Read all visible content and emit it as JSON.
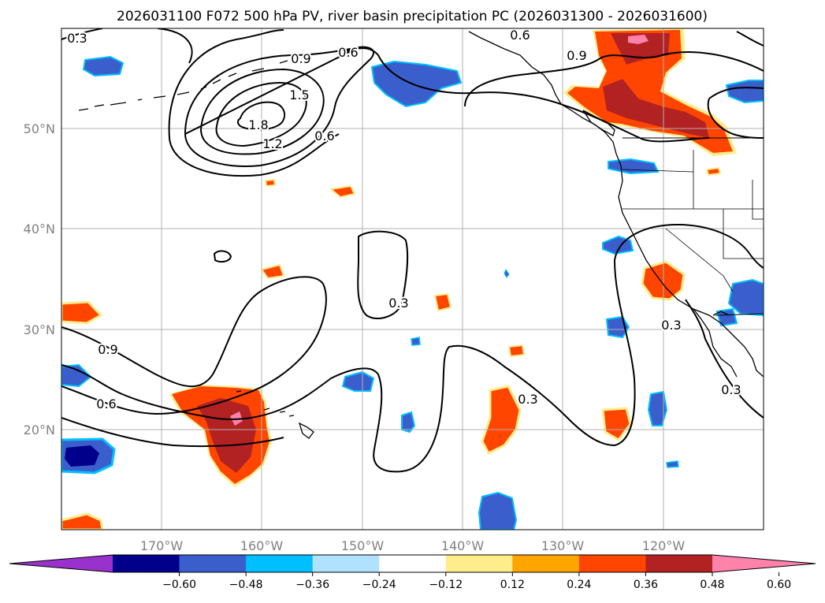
{
  "title": "2026031100 F072 500 hPa PV, river basin precipitation PC (2026031300 - 2026031600)",
  "axes": {
    "lon_ticks": [
      "170°W",
      "160°W",
      "150°W",
      "140°W",
      "130°W",
      "120°W"
    ],
    "lat_ticks": [
      "50°N",
      "40°N",
      "30°N",
      "20°N"
    ]
  },
  "colorbar": {
    "colors": [
      "#9932cc",
      "#00008b",
      "#3a5fcd",
      "#00bfff",
      "#b0e2ff",
      "#ffffff",
      "#ffec8b",
      "#ffa500",
      "#ff4500",
      "#b22222",
      "#ff82ab"
    ],
    "tick_labels": [
      "−0.60",
      "−0.48",
      "−0.36",
      "−0.24",
      "−0.12",
      "0.12",
      "0.24",
      "0.36",
      "0.48",
      "0.60"
    ]
  },
  "pv_contour_labels": [
    "0.3",
    "0.9",
    "0.6",
    "1.5",
    "1.8",
    "1.2",
    "0.6",
    "0.9",
    "0.6",
    "0.3",
    "0.9",
    "0.6",
    "0.3",
    "0.3",
    "0.3"
  ],
  "colors": {
    "orange_red": "#ff4500",
    "firebrick": "#b22222",
    "pink": "#ff82ab",
    "gold": "#ffec8b",
    "orange": "#ffa500",
    "royal_blue": "#3a5fcd",
    "sky_blue": "#00bfff",
    "navy": "#00008b"
  }
}
